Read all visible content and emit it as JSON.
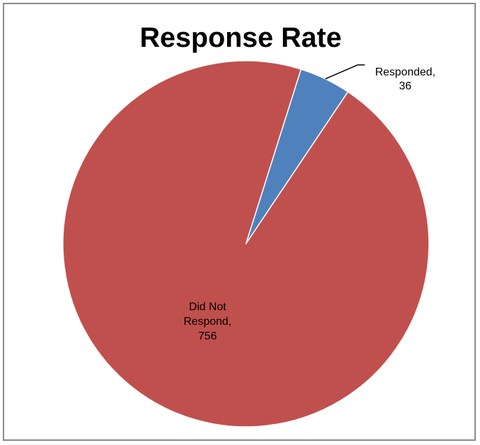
{
  "chart_data": {
    "type": "pie",
    "title": "Response Rate",
    "categories": [
      "Responded",
      "Did Not Respond"
    ],
    "values": [
      36,
      756
    ],
    "colors": [
      "#4f81bd",
      "#c0504d"
    ],
    "data_labels": [
      [
        "Responded,",
        "36"
      ],
      [
        "Did Not",
        "Respond,",
        "756"
      ]
    ],
    "legend": "none"
  }
}
